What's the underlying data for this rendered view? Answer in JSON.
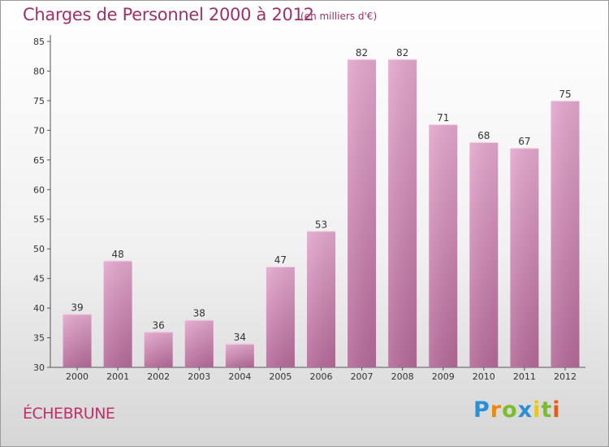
{
  "header": {
    "title": "Charges de Personnel 2000 à 2012",
    "subtitle": "(en milliers d'€)"
  },
  "footer": {
    "commune": "ÉCHEBRUNE",
    "logo": {
      "letters": [
        "P",
        "r",
        "o",
        "x",
        "i",
        "t",
        "i"
      ],
      "colors": [
        "#2a8fd4",
        "#e8891a",
        "#7bbd2a",
        "#2a8fd4",
        "#e8c61a",
        "#7bbd2a",
        "#e85a1a"
      ]
    }
  },
  "chart_data": {
    "type": "bar",
    "title": "Charges de Personnel 2000 à 2012",
    "subtitle": "(en milliers d'€)",
    "categories": [
      "2000",
      "2001",
      "2002",
      "2003",
      "2004",
      "2005",
      "2006",
      "2007",
      "2008",
      "2009",
      "2010",
      "2011",
      "2012"
    ],
    "values": [
      39,
      48,
      36,
      38,
      34,
      47,
      53,
      82,
      82,
      71,
      68,
      67,
      75
    ],
    "ylim": [
      30,
      85
    ],
    "yticks": [
      30,
      35,
      40,
      45,
      50,
      55,
      60,
      65,
      70,
      75,
      80,
      85
    ],
    "grid": false,
    "bar_color": "#d98cbb",
    "data_labels": true
  }
}
